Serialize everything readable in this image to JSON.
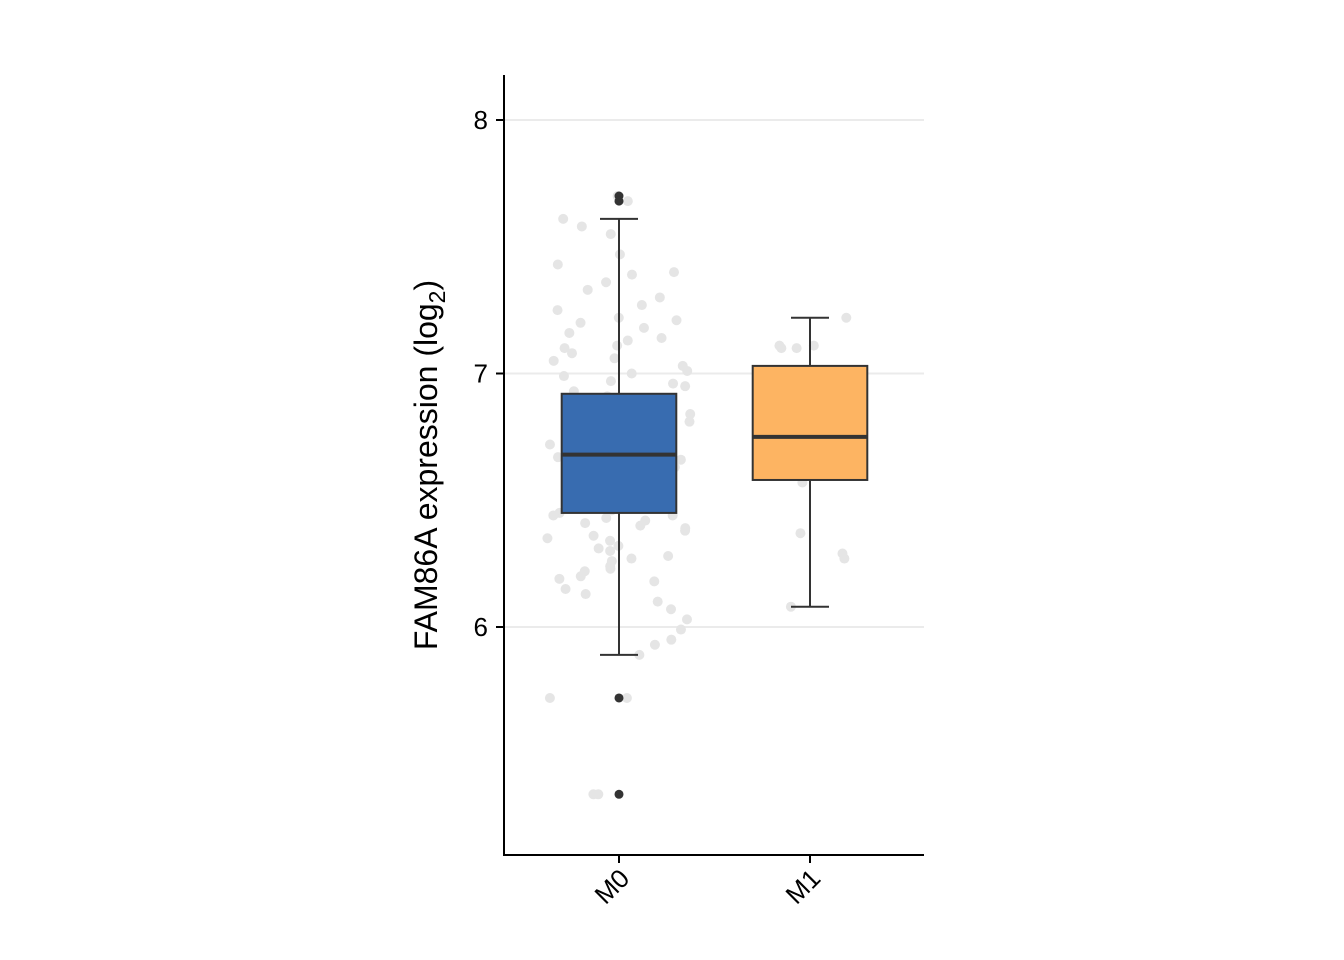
{
  "chart_data": {
    "type": "box",
    "title": "",
    "xlabel": "",
    "ylabel": "FAM86A expression (log",
    "ylabel_sub": "2",
    "ylabel_close": ")",
    "ylim": [
      5.1,
      8.18
    ],
    "yticks": [
      6,
      7,
      8
    ],
    "ytick_labels": [
      "6",
      "7",
      "8"
    ],
    "grid": "horizontal-major",
    "categories": [
      "M0",
      "M1"
    ],
    "colors": {
      "M0": "#386cb0",
      "M1": "#fdb462",
      "points": "#e5e5e5",
      "outliers": "#333333",
      "gridline": "#ebebeb"
    },
    "boxes": [
      {
        "name": "M0",
        "q1": 6.45,
        "median": 6.68,
        "q3": 6.92,
        "whisker_low": 5.89,
        "whisker_high": 7.61,
        "outliers": [
          7.7,
          7.68,
          5.72,
          5.34
        ]
      },
      {
        "name": "M1",
        "q1": 6.58,
        "median": 6.75,
        "q3": 7.03,
        "whisker_low": 6.08,
        "whisker_high": 7.22,
        "outliers": []
      }
    ],
    "points": {
      "M0": [
        7.7,
        7.68,
        7.61,
        7.58,
        7.55,
        7.47,
        7.43,
        7.4,
        7.39,
        7.36,
        7.33,
        7.3,
        7.27,
        7.25,
        7.22,
        7.2,
        7.18,
        7.16,
        7.13,
        7.11,
        7.08,
        7.05,
        7.03,
        7.01,
        6.99,
        6.97,
        6.95,
        6.93,
        6.91,
        6.89,
        6.87,
        6.85,
        6.83,
        6.81,
        6.79,
        6.77,
        6.75,
        6.73,
        6.71,
        6.7,
        6.69,
        6.68,
        6.67,
        6.66,
        6.65,
        6.63,
        6.61,
        6.59,
        6.57,
        6.55,
        6.53,
        6.51,
        6.49,
        6.47,
        6.46,
        6.45,
        6.44,
        6.43,
        6.42,
        6.4,
        6.38,
        6.36,
        6.34,
        6.32,
        6.3,
        6.28,
        6.26,
        6.24,
        6.22,
        6.2,
        6.18,
        6.15,
        6.13,
        6.1,
        6.07,
        6.03,
        5.99,
        5.95,
        5.93,
        5.89,
        5.72,
        5.72,
        5.34,
        5.34,
        6.62,
        6.58,
        6.54,
        6.5,
        6.41,
        6.39,
        6.35,
        6.31,
        6.27,
        6.23,
        6.19,
        6.84,
        6.9,
        6.96,
        7.0,
        7.06,
        7.1,
        7.14,
        7.21,
        6.74,
        6.72,
        6.64,
        6.6,
        6.56,
        6.48,
        6.44
      ],
      "M1": [
        7.22,
        7.11,
        7.1,
        7.1,
        7.11,
        6.57,
        6.37,
        6.29,
        6.27,
        6.08
      ],
      "M1_offsets": [
        0.19,
        -0.16,
        -0.15,
        -0.07,
        0.02,
        -0.04,
        -0.05,
        0.17,
        0.18,
        -0.1
      ]
    }
  }
}
